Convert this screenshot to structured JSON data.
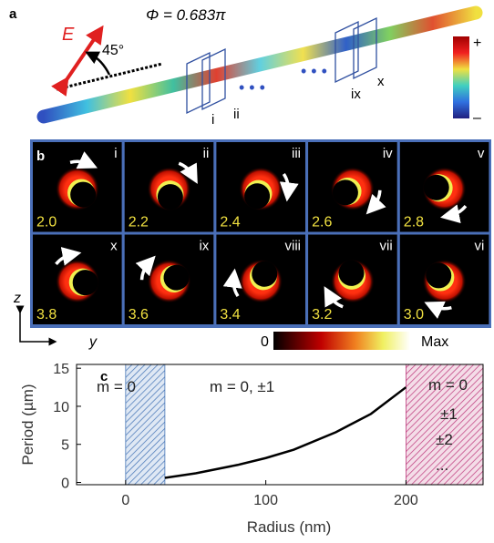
{
  "panel_a": {
    "label": "a",
    "field_label": "E",
    "angle": "45°",
    "phase": "Φ = 0.683π",
    "planes": [
      "i",
      "ii",
      "ix",
      "x"
    ],
    "colorbar": [
      "+",
      "–"
    ]
  },
  "panel_b": {
    "label": "b",
    "frames": [
      {
        "numeral": "i",
        "value": "2.0"
      },
      {
        "numeral": "ii",
        "value": "2.2"
      },
      {
        "numeral": "iii",
        "value": "2.4"
      },
      {
        "numeral": "iv",
        "value": "2.6"
      },
      {
        "numeral": "v",
        "value": "2.8"
      },
      {
        "numeral": "vi",
        "value": "3.0"
      },
      {
        "numeral": "vii",
        "value": "3.2"
      },
      {
        "numeral": "viii",
        "value": "3.4"
      },
      {
        "numeral": "ix",
        "value": "3.6"
      },
      {
        "numeral": "x",
        "value": "3.8"
      }
    ],
    "axes": [
      "z",
      "y"
    ],
    "colorbar": [
      "0",
      "Max"
    ]
  },
  "chart_data": {
    "type": "line",
    "panel_label": "c",
    "x_label": "Radius (nm)",
    "y_label": "Period (µm)",
    "xlim": [
      -35,
      255
    ],
    "ylim": [
      -0.3,
      15.5
    ],
    "xticks": [
      0,
      100,
      200
    ],
    "yticks": [
      0,
      5,
      10,
      15
    ],
    "series": [
      {
        "color": "#000000",
        "x": [
          28,
          50,
          80,
          100,
          120,
          150,
          175,
          200
        ],
        "values": [
          0.6,
          1.2,
          2.3,
          3.2,
          4.3,
          6.6,
          9.0,
          12.5
        ]
      }
    ],
    "regions": [
      {
        "x": [
          0,
          28
        ],
        "color": "#4a78b8"
      },
      {
        "x": [
          200,
          255
        ],
        "color": "#c04080"
      }
    ],
    "annotations": [
      "m = 0",
      "m = 0, ±1",
      "m = 0",
      "±1",
      "±2",
      "..."
    ]
  }
}
